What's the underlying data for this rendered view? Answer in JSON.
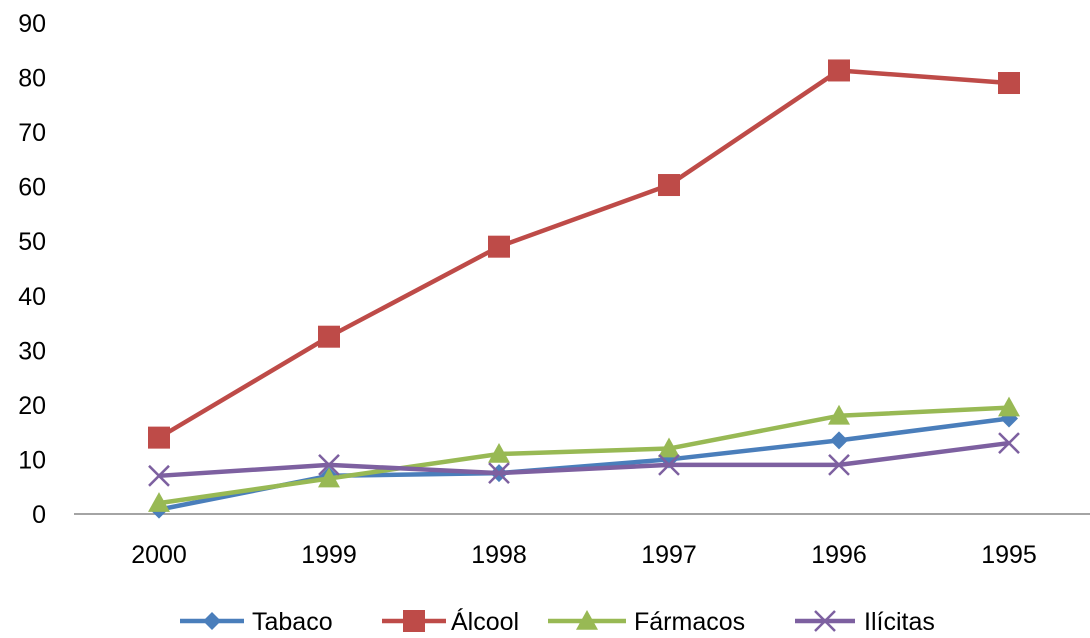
{
  "chart_data": {
    "type": "line",
    "categories": [
      "2000",
      "1999",
      "1998",
      "1997",
      "1996",
      "1995"
    ],
    "ylim": [
      0,
      90
    ],
    "yticks": [
      0,
      10,
      20,
      30,
      40,
      50,
      60,
      70,
      80,
      90
    ],
    "ytick_labels": [
      "0",
      "10",
      "20",
      "30",
      "40",
      "50",
      "60",
      "70",
      "80",
      "90"
    ],
    "grid": false,
    "legend_position": "bottom",
    "title": "",
    "xlabel": "",
    "ylabel": "",
    "series": [
      {
        "name": "Tabaco",
        "values": [
          0.8,
          7,
          7.5,
          10,
          13.5,
          17.5
        ],
        "color": "#4a7ebb",
        "marker": "diamond"
      },
      {
        "name": "Álcool",
        "values": [
          14,
          32.5,
          49,
          60.3,
          81.3,
          79
        ],
        "color": "#be4b48",
        "marker": "square"
      },
      {
        "name": "Fármacos",
        "values": [
          2,
          6.5,
          11,
          12,
          18,
          19.5
        ],
        "color": "#98b954",
        "marker": "triangle"
      },
      {
        "name": "Ilícitas",
        "values": [
          7,
          9,
          7.5,
          9,
          9,
          13
        ],
        "color": "#7d60a0",
        "marker": "x"
      }
    ]
  }
}
